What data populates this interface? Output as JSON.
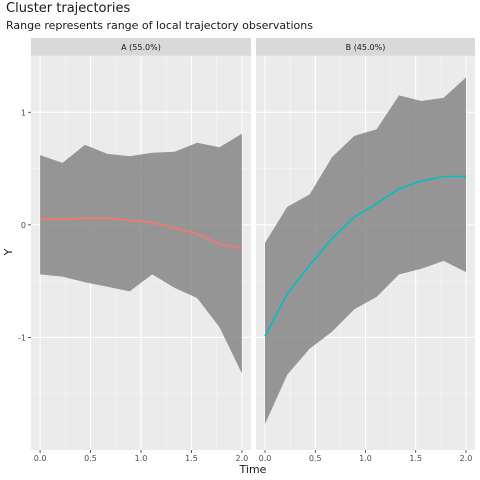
{
  "chart_data": {
    "type": "area",
    "title": "Cluster trajectories",
    "subtitle": "Range represents range of local trajectory observations",
    "xlabel": "Time",
    "ylabel": "Y",
    "xlim": [
      -0.09,
      2.09
    ],
    "ylim": [
      -2.0,
      1.5
    ],
    "x_ticks": [
      0.0,
      0.5,
      1.0,
      1.5,
      2.0
    ],
    "x_tick_labels": [
      "0.0",
      "0.5",
      "1.0",
      "1.5",
      "2.0"
    ],
    "y_ticks": [
      1,
      0,
      -1
    ],
    "y_tick_labels": [
      "1",
      "0",
      "-1"
    ],
    "grid": true,
    "x": [
      0.0,
      0.222,
      0.444,
      0.667,
      0.889,
      1.111,
      1.333,
      1.556,
      1.778,
      2.0
    ],
    "panels": [
      {
        "label": "A (55.0%)",
        "line_color": "#F8766D",
        "mean": [
          0.05,
          0.05,
          0.06,
          0.06,
          0.04,
          0.02,
          -0.03,
          -0.08,
          -0.17,
          -0.21
        ],
        "upper": [
          0.62,
          0.55,
          0.71,
          0.63,
          0.61,
          0.64,
          0.65,
          0.73,
          0.69,
          0.81
        ],
        "lower": [
          -0.44,
          -0.46,
          -0.51,
          -0.55,
          -0.59,
          -0.44,
          -0.56,
          -0.65,
          -0.91,
          -1.32
        ]
      },
      {
        "label": "B (45.0%)",
        "line_color": "#00BFC4",
        "mean": [
          -0.99,
          -0.61,
          -0.36,
          -0.12,
          0.07,
          0.19,
          0.32,
          0.39,
          0.43,
          0.43
        ],
        "upper": [
          -0.16,
          0.16,
          0.27,
          0.6,
          0.79,
          0.85,
          1.15,
          1.1,
          1.13,
          1.31
        ],
        "lower": [
          -1.77,
          -1.33,
          -1.1,
          -0.95,
          -0.75,
          -0.64,
          -0.44,
          -0.39,
          -0.32,
          -0.42
        ]
      }
    ]
  }
}
